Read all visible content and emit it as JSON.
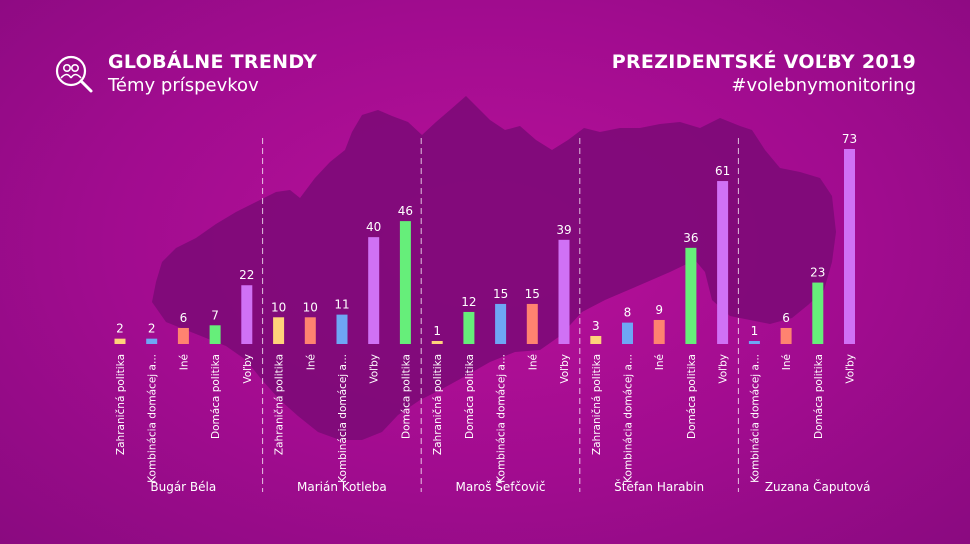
{
  "header": {
    "title_left": "GLOBÁLNE TRENDY",
    "subtitle_left": "Témy príspevkov",
    "title_right": "PREZIDENTSKÉ VOĽBY 2019",
    "subtitle_right": "#volebnymonitoring",
    "logo_icon": "magnifier-people-icon"
  },
  "colors": {
    "background": "#a10c8f",
    "map": "#7d0a78",
    "Zahraničná politika": "#ffd27a",
    "Kombinácia domácej a...": "#6ea6f5",
    "Iné": "#ff8370",
    "Domáca politika": "#66ee7a",
    "Voľby": "#d071f5"
  },
  "chart_data": {
    "type": "bar",
    "ylim": [
      0,
      73
    ],
    "groups": [
      {
        "name": "Bugár Béla",
        "bars": [
          {
            "category": "Zahraničná politika",
            "value": 2
          },
          {
            "category": "Kombinácia domácej a...",
            "value": 2
          },
          {
            "category": "Iné",
            "value": 6
          },
          {
            "category": "Domáca politika",
            "value": 7
          },
          {
            "category": "Voľby",
            "value": 22
          }
        ]
      },
      {
        "name": "Marián Kotleba",
        "bars": [
          {
            "category": "Zahraničná politika",
            "value": 10
          },
          {
            "category": "Iné",
            "value": 10
          },
          {
            "category": "Kombinácia domácej a...",
            "value": 11
          },
          {
            "category": "Voľby",
            "value": 40
          },
          {
            "category": "Domáca politika",
            "value": 46
          }
        ]
      },
      {
        "name": "Maroš Šefčovič",
        "bars": [
          {
            "category": "Zahraničná politika",
            "value": 1
          },
          {
            "category": "Domáca politika",
            "value": 12
          },
          {
            "category": "Kombinácia domácej a...",
            "value": 15
          },
          {
            "category": "Iné",
            "value": 15
          },
          {
            "category": "Voľby",
            "value": 39
          }
        ]
      },
      {
        "name": "Štefan Harabin",
        "bars": [
          {
            "category": "Zahraničná politika",
            "value": 3
          },
          {
            "category": "Kombinácia domácej a...",
            "value": 8
          },
          {
            "category": "Iné",
            "value": 9
          },
          {
            "category": "Domáca politika",
            "value": 36
          },
          {
            "category": "Voľby",
            "value": 61
          }
        ]
      },
      {
        "name": "Zuzana Čaputová",
        "bars": [
          {
            "category": "Kombinácia domácej a...",
            "value": 1
          },
          {
            "category": "Iné",
            "value": 6
          },
          {
            "category": "Domáca politika",
            "value": 23
          },
          {
            "category": "Voľby",
            "value": 73
          }
        ]
      }
    ]
  }
}
